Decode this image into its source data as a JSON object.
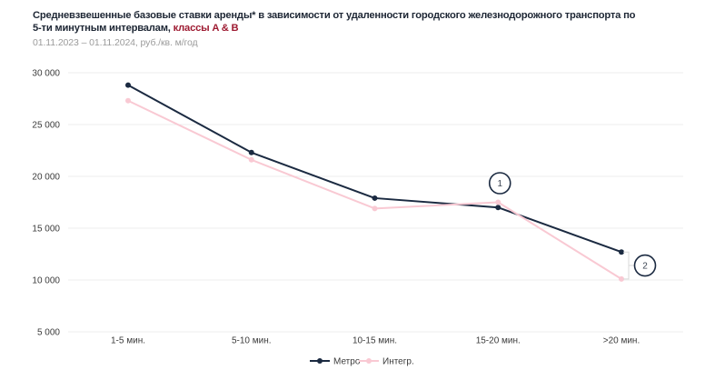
{
  "header": {
    "title_line1": "Средневзвешенные базовые ставки аренды* в зависимости от удаленности городского железнодорожного транспорта по",
    "title_line2_prefix": "5-ти минутным интервалам, ",
    "title_line2_highlight": "классы A & B",
    "subtitle": "01.11.2023 – 01.11.2024, руб./кв. м/год"
  },
  "colors": {
    "title_text": "#1d2634",
    "highlight_red": "#9e1b32",
    "subtitle_gray": "#9b9b9b",
    "metro_navy": "#1b2a41",
    "integr_pink": "#f9c9d3",
    "gridline": "#ececec",
    "axis_text": "#3b3b3b",
    "bracket_gray": "#d9d9d9",
    "annotation_text": "#3d4654",
    "background": "#ffffff"
  },
  "chart_data": {
    "type": "line",
    "title": "Средневзвешенные базовые ставки аренды* в зависимости от удаленности городского железнодорожного транспорта по 5-ти минутным интервалам, классы A & B",
    "subtitle": "01.11.2023 – 01.11.2024, руб./кв. м/год",
    "categories": [
      "1-5 мин.",
      "5-10 мин.",
      "10-15 мин.",
      "15-20 мин.",
      ">20 мин."
    ],
    "series": [
      {
        "name": "Метро",
        "color": "#1b2a41",
        "values": [
          28800,
          22300,
          17900,
          17000,
          12700
        ]
      },
      {
        "name": "Интегр.",
        "color": "#f9c9d3",
        "values": [
          27300,
          21600,
          16900,
          17500,
          10100
        ]
      }
    ],
    "ylim": [
      5000,
      30000
    ],
    "yticks": [
      5000,
      10000,
      15000,
      20000,
      25000,
      30000
    ],
    "ytick_labels": [
      "5 000",
      "10 000",
      "15 000",
      "20 000",
      "25 000",
      "30 000"
    ],
    "grid": true,
    "legend_position": "bottom-center",
    "annotations": [
      {
        "label": "1",
        "shape": "circled-number",
        "placement": "above-point",
        "series": "Интегр.",
        "category": "15-20 мин."
      },
      {
        "label": "2",
        "shape": "circled-number",
        "placement": "gap-bracket-right",
        "series": [
          "Метро",
          "Интегр."
        ],
        "category": ">20 мин."
      }
    ]
  }
}
